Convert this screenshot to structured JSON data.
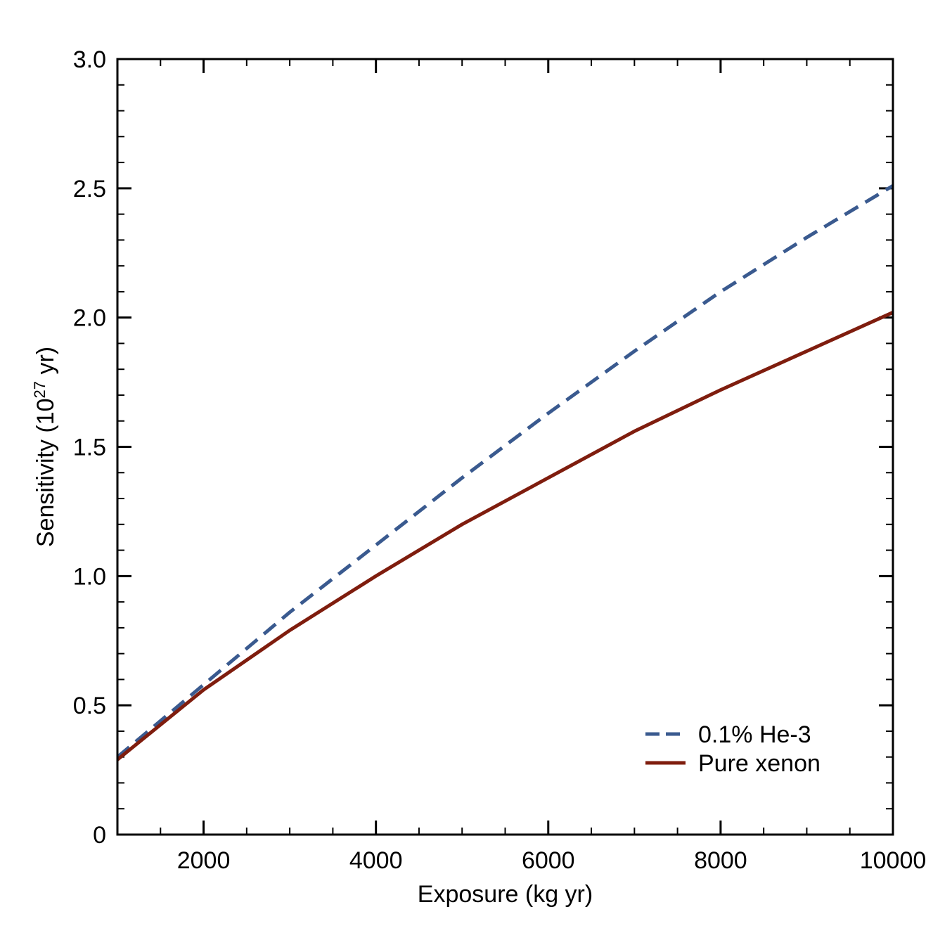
{
  "chart_data": {
    "type": "line",
    "xlabel": "Exposure (kg yr)",
    "ylabel": {
      "prefix": "Sensitivity (10",
      "superscript": "27",
      "suffix": " yr)"
    },
    "xlim": [
      1000,
      10000
    ],
    "ylim": [
      0,
      3.0
    ],
    "x_ticks": [
      2000,
      4000,
      6000,
      8000,
      10000
    ],
    "x_tick_labels": [
      "2000",
      "4000",
      "6000",
      "8000",
      "10000"
    ],
    "x_minor_step": 500,
    "y_ticks": [
      0,
      0.5,
      1.0,
      1.5,
      2.0,
      2.5,
      3.0
    ],
    "y_tick_labels": [
      "0",
      "0.5",
      "1.0",
      "1.5",
      "2.0",
      "2.5",
      "3.0"
    ],
    "y_minor_step": 0.1,
    "grid": false,
    "legend_position": "bottom-right",
    "series": [
      {
        "name": "0.1% He-3",
        "style": "dashed",
        "color": "#3a5a8f",
        "x": [
          1000,
          2000,
          3000,
          4000,
          5000,
          6000,
          7000,
          8000,
          9000,
          10000
        ],
        "y": [
          0.3,
          0.58,
          0.86,
          1.12,
          1.38,
          1.63,
          1.87,
          2.1,
          2.31,
          2.51
        ]
      },
      {
        "name": "Pure xenon",
        "style": "solid",
        "color": "#7f1d0e",
        "x": [
          1000,
          2000,
          3000,
          4000,
          5000,
          6000,
          7000,
          8000,
          9000,
          10000
        ],
        "y": [
          0.29,
          0.56,
          0.79,
          1.0,
          1.2,
          1.38,
          1.56,
          1.72,
          1.87,
          2.02
        ]
      }
    ]
  }
}
